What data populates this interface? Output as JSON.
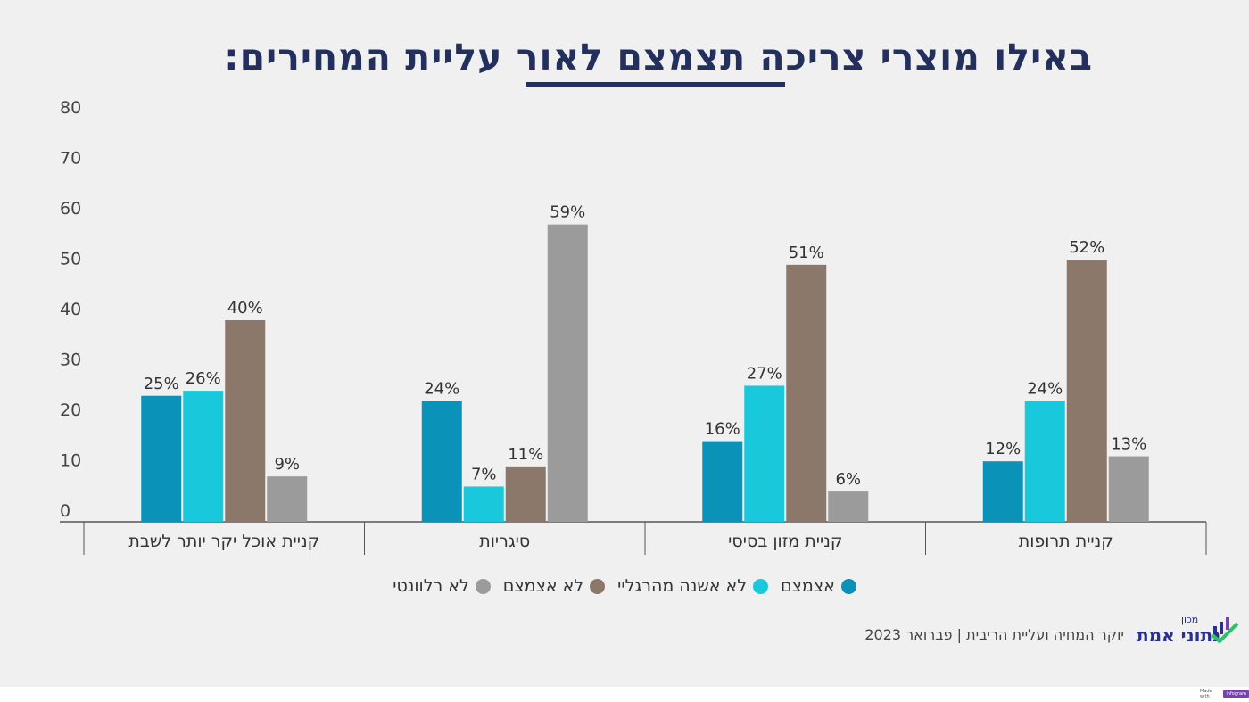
{
  "header": {
    "title": "באילו מוצרי צריכה תצמצם לאור עליית המחירים:"
  },
  "chart_data": {
    "type": "bar",
    "title": "באילו מוצרי צריכה תצמצם לאור עליית המחירים:",
    "xlabel": "",
    "ylabel": "",
    "ylim": [
      0,
      80
    ],
    "yticks": [
      0,
      10,
      20,
      30,
      40,
      50,
      60,
      70,
      80
    ],
    "grid": false,
    "legend_position": "bottom",
    "categories": [
      "קניית אוכל יקר יותר לשבת",
      "סיגריות",
      "קניית מזון בסיסי",
      "קניית תרופות"
    ],
    "series": [
      {
        "name": "אצמצם",
        "color": "#0b92b8",
        "values": [
          25,
          24,
          16,
          12
        ],
        "labels": [
          "25%",
          "24%",
          "16%",
          "12%"
        ]
      },
      {
        "name": "לא אשנה מהרגליי",
        "color": "#1ac8dc",
        "values": [
          26,
          7,
          27,
          24
        ],
        "labels": [
          "26%",
          "7%",
          "27%",
          "24%"
        ]
      },
      {
        "name": "לא אצמצם",
        "color": "#8c776b",
        "values": [
          40,
          11,
          51,
          52
        ],
        "labels": [
          "40%",
          "11%",
          "51%",
          "52%"
        ]
      },
      {
        "name": "לא רלוונטי",
        "color": "#9b9b9b",
        "values": [
          9,
          59,
          6,
          13
        ],
        "labels": [
          "9%",
          "59%",
          "6%",
          "13%"
        ]
      }
    ]
  },
  "footer": {
    "source": "יוקר המחיה ועליית הריבית | פברואר 2023",
    "logo_small": "מכון",
    "logo_main": "נתוני אמת",
    "made_with": "Made with",
    "made_with_brand": "infogram"
  },
  "colors": {
    "title": "#23305e",
    "background": "#f0f0f0",
    "logo": "#2a2f8c",
    "logo_check": "#27c46a"
  }
}
